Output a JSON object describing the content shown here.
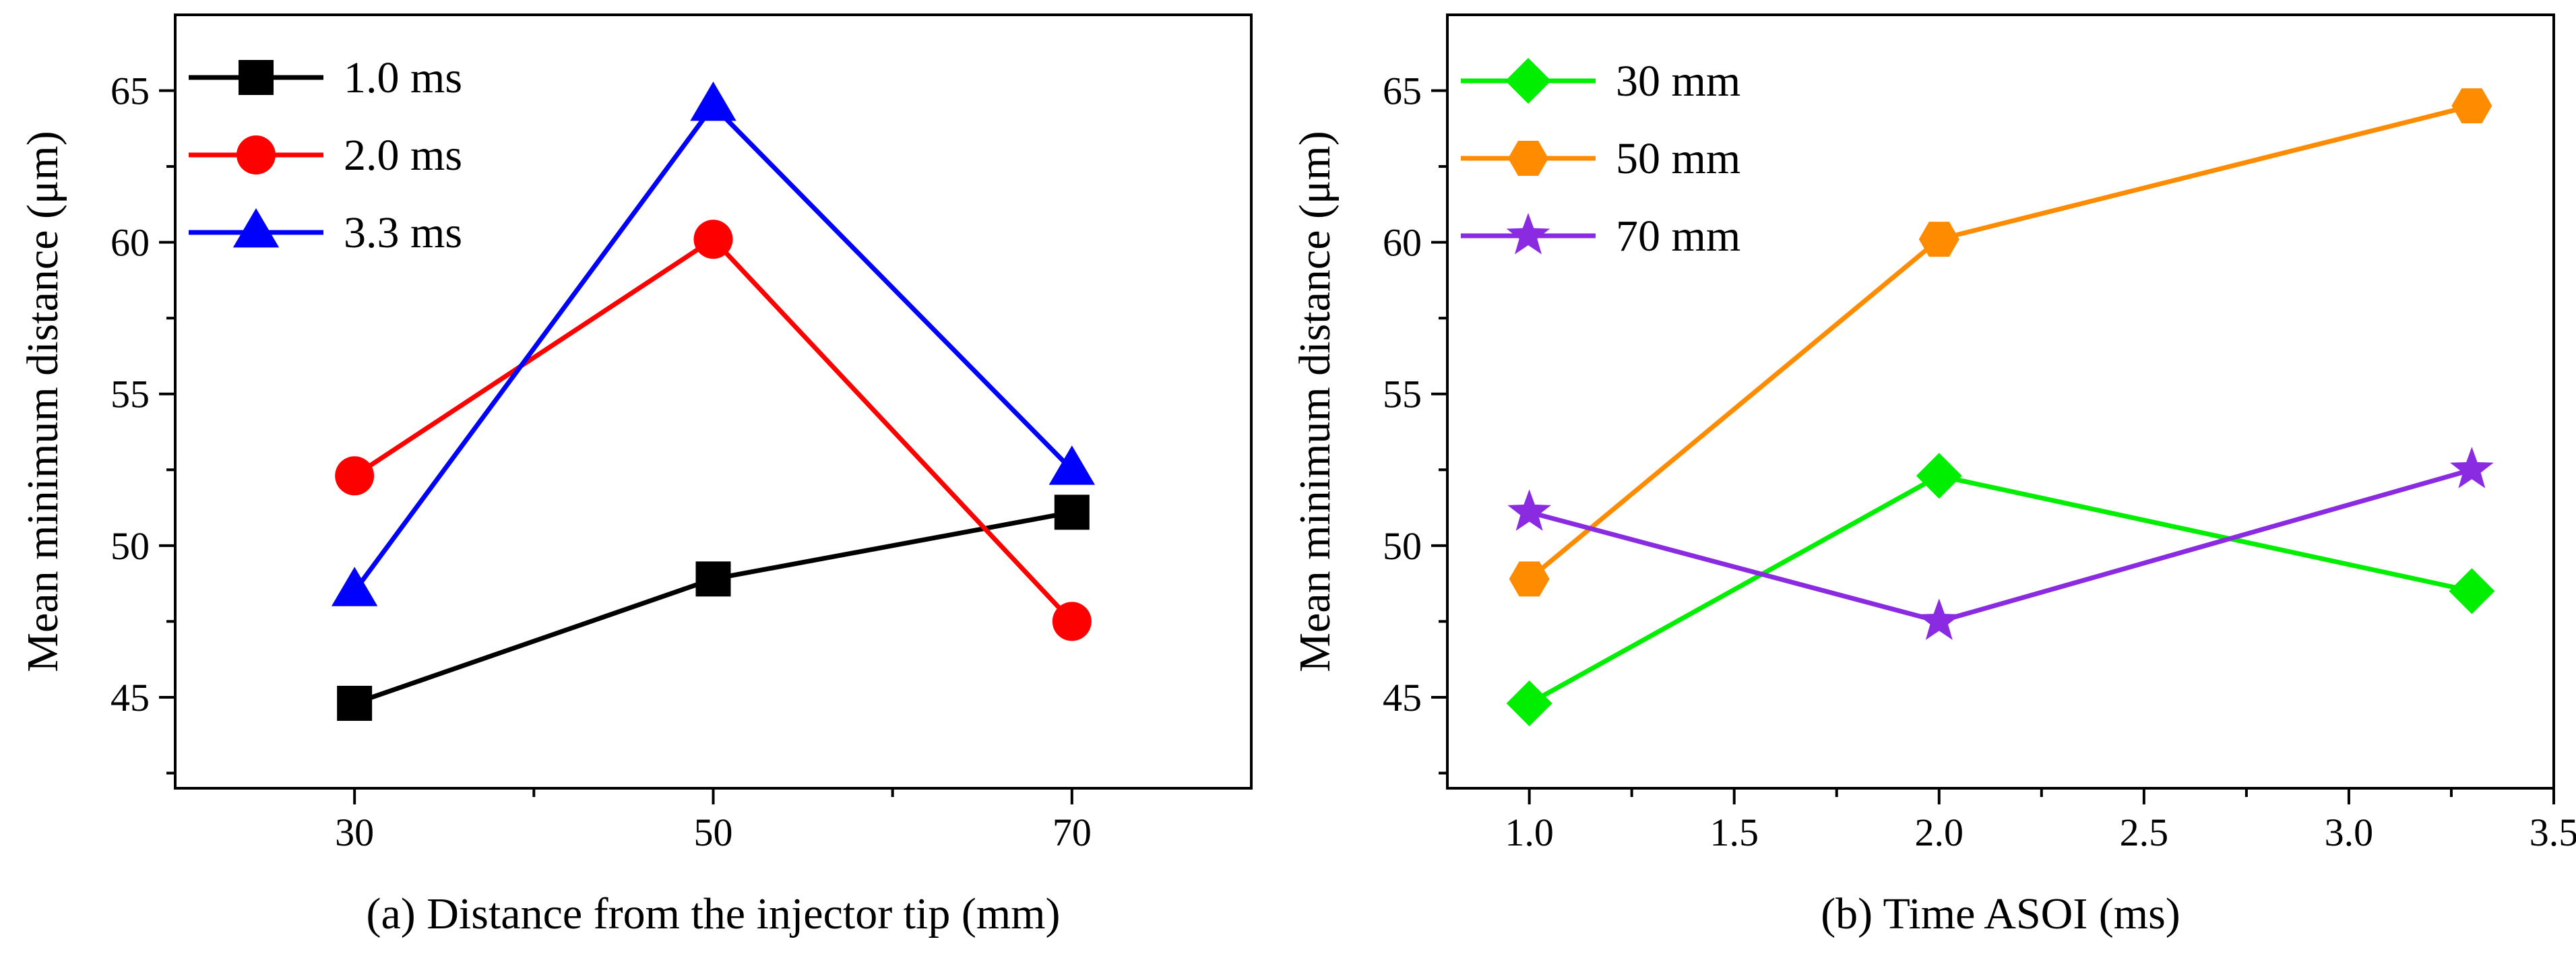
{
  "chart_data": [
    {
      "id": "a",
      "type": "line",
      "xlabel": "(a) Distance from the injector tip (mm)",
      "ylabel": "Mean minimum distance (μm)",
      "xlim": [
        20,
        80
      ],
      "ylim": [
        42,
        67.5
      ],
      "xticks": [
        30,
        50,
        70
      ],
      "xtick_labels": [
        "30",
        "50",
        "70"
      ],
      "yticks": [
        45,
        50,
        55,
        60,
        65
      ],
      "ytick_labels": [
        "45",
        "50",
        "55",
        "60",
        "65"
      ],
      "legend_position": "top-left",
      "series": [
        {
          "name": "1.0 ms",
          "color": "#000000",
          "marker": "square",
          "x": [
            30,
            50,
            70
          ],
          "values": [
            44.8,
            48.9,
            51.1
          ]
        },
        {
          "name": "2.0 ms",
          "color": "#ff0000",
          "marker": "circle",
          "x": [
            30,
            50,
            70
          ],
          "values": [
            52.3,
            60.1,
            47.5
          ]
        },
        {
          "name": "3.3 ms",
          "color": "#0000ff",
          "marker": "triangle",
          "x": [
            30,
            50,
            70
          ],
          "values": [
            48.5,
            64.5,
            52.5
          ]
        }
      ]
    },
    {
      "id": "b",
      "type": "line",
      "xlabel": "(b) Time ASOI (ms)",
      "ylabel": "Mean minimum distance (μm)",
      "xlim": [
        0.8,
        3.5
      ],
      "ylim": [
        42,
        67.5
      ],
      "xticks": [
        1.0,
        1.5,
        2.0,
        2.5,
        3.0,
        3.5
      ],
      "xtick_labels": [
        "1.0",
        "1.5",
        "2.0",
        "2.5",
        "3.0",
        "3.5"
      ],
      "yticks": [
        45,
        50,
        55,
        60,
        65
      ],
      "ytick_labels": [
        "45",
        "50",
        "55",
        "60",
        "65"
      ],
      "legend_position": "top-left",
      "series": [
        {
          "name": "30 mm",
          "color": "#00ee00",
          "marker": "diamond",
          "x": [
            1.0,
            2.0,
            3.3
          ],
          "values": [
            44.8,
            52.3,
            48.5
          ]
        },
        {
          "name": "50 mm",
          "color": "#ff8c00",
          "marker": "hexagon",
          "x": [
            1.0,
            2.0,
            3.3
          ],
          "values": [
            48.9,
            60.1,
            64.5
          ]
        },
        {
          "name": "70 mm",
          "color": "#8a2be2",
          "marker": "star",
          "x": [
            1.0,
            2.0,
            3.3
          ],
          "values": [
            51.1,
            47.5,
            52.5
          ]
        }
      ]
    }
  ]
}
